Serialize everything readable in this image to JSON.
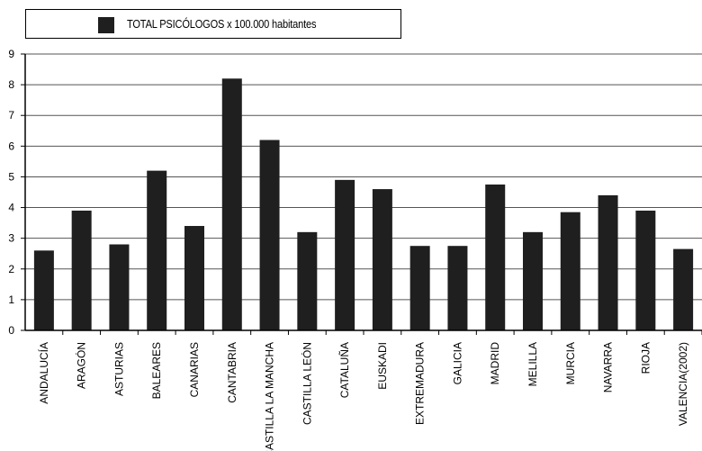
{
  "chart_data": {
    "type": "bar",
    "categories": [
      "ANDALUCÍA",
      "ARAGÓN",
      "ASTURIAS",
      "BALEARES",
      "CANARIAS",
      "CANTABRIA",
      "CASTILLA LA  MANCHA",
      "CASTILLA LEÓN",
      "CATALUÑA",
      "EUSKADI",
      "EXTREMADURA",
      "GALICIA",
      "MADRID",
      "MELILLA",
      "MURCIA",
      "NAVARRA",
      "RIOJA",
      "VALENCIA(2002)"
    ],
    "series": [
      {
        "name": "TOTAL PSICÓLOGOS x 100.000 habitantes",
        "values": [
          2.6,
          3.9,
          2.8,
          5.2,
          3.4,
          8.2,
          6.2,
          3.2,
          4.9,
          4.6,
          2.75,
          2.75,
          4.75,
          3.2,
          3.85,
          4.4,
          3.9,
          2.65
        ],
        "color": "#1f1f1f"
      }
    ],
    "ylim": [
      0,
      9
    ],
    "yticks": [
      0,
      1,
      2,
      3,
      4,
      5,
      6,
      7,
      8,
      9
    ],
    "grid": true,
    "legend_position": "top-left"
  }
}
